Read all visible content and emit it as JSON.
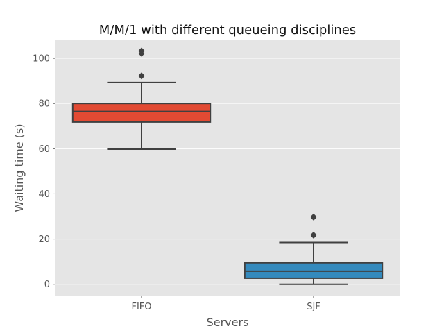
{
  "chart_data": {
    "type": "box",
    "title": "M/M/1 with different queueing disciplines",
    "xlabel": "Servers",
    "ylabel": "Waiting time (s)",
    "ylim": [
      -5,
      108
    ],
    "yticks": [
      0,
      20,
      40,
      60,
      80,
      100
    ],
    "grid": true,
    "categories": [
      "FIFO",
      "SJF"
    ],
    "boxes": [
      {
        "category": "FIFO",
        "color": "#E24A33",
        "whisker_low": 59.8,
        "q1": 71.8,
        "median": 76.5,
        "q3": 80.0,
        "whisker_high": 89.3,
        "outliers": [
          92.0,
          92.5,
          102.0,
          103.0,
          103.5
        ]
      },
      {
        "category": "SJF",
        "color": "#348ABD",
        "whisker_low": 0.0,
        "q1": 2.7,
        "median": 5.8,
        "q3": 9.5,
        "whisker_high": 18.5,
        "outliers": [
          21.5,
          22.0,
          29.5,
          30.0
        ]
      }
    ]
  },
  "colors": {
    "plot_background": "#E5E5E5",
    "grid": "#FFFFFF",
    "box_edge": "#404040"
  }
}
